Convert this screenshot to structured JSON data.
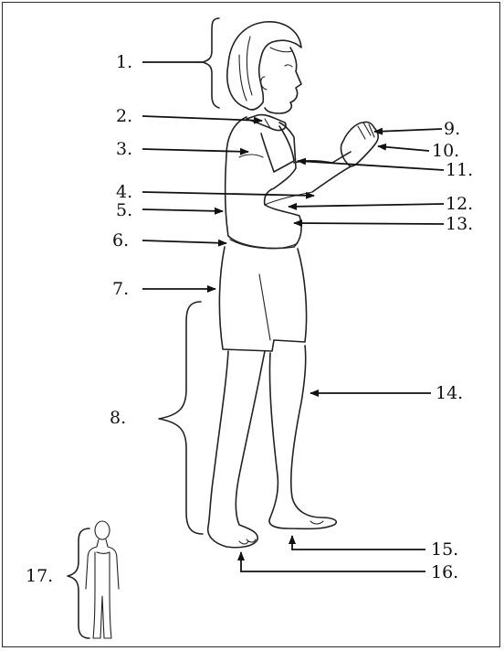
{
  "labels": [
    {
      "id": "1",
      "text": "1."
    },
    {
      "id": "2",
      "text": "2."
    },
    {
      "id": "3",
      "text": "3."
    },
    {
      "id": "4",
      "text": "4."
    },
    {
      "id": "5",
      "text": "5."
    },
    {
      "id": "6",
      "text": "6."
    },
    {
      "id": "7",
      "text": "7."
    },
    {
      "id": "8",
      "text": "8."
    },
    {
      "id": "9",
      "text": "9."
    },
    {
      "id": "10",
      "text": "10."
    },
    {
      "id": "11",
      "text": "11."
    },
    {
      "id": "12",
      "text": "12."
    },
    {
      "id": "13",
      "text": "13."
    },
    {
      "id": "14",
      "text": "14."
    },
    {
      "id": "15",
      "text": "15."
    },
    {
      "id": "16",
      "text": "16."
    },
    {
      "id": "17",
      "text": "17."
    }
  ]
}
